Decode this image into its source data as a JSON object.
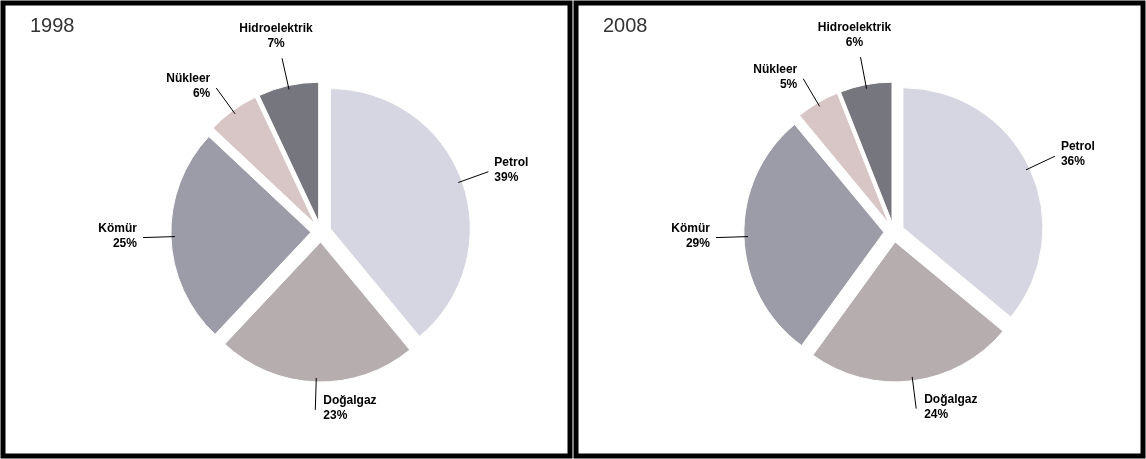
{
  "chart_data": [
    {
      "type": "pie",
      "title": "1998",
      "categories": [
        "Petrol",
        "Doğalgaz",
        "Kömür",
        "Nükleer",
        "Hidroelektrik"
      ],
      "values": [
        39,
        23,
        25,
        6,
        7
      ],
      "value_labels": [
        "39%",
        "23%",
        "25%",
        "6%",
        "7%"
      ],
      "colors": [
        "#d6d6e2",
        "#b6aeae",
        "#9c9ca8",
        "#d8c6c6",
        "#76767e"
      ]
    },
    {
      "type": "pie",
      "title": "2008",
      "categories": [
        "Petrol",
        "Doğalgaz",
        "Kömür",
        "Nükleer",
        "Hidroelektrik"
      ],
      "values": [
        36,
        24,
        29,
        5,
        6
      ],
      "value_labels": [
        "36%",
        "24%",
        "29%",
        "5%",
        "6%"
      ],
      "colors": [
        "#d6d6e2",
        "#b6aeae",
        "#9c9ca8",
        "#d8c6c6",
        "#76767e"
      ]
    }
  ]
}
